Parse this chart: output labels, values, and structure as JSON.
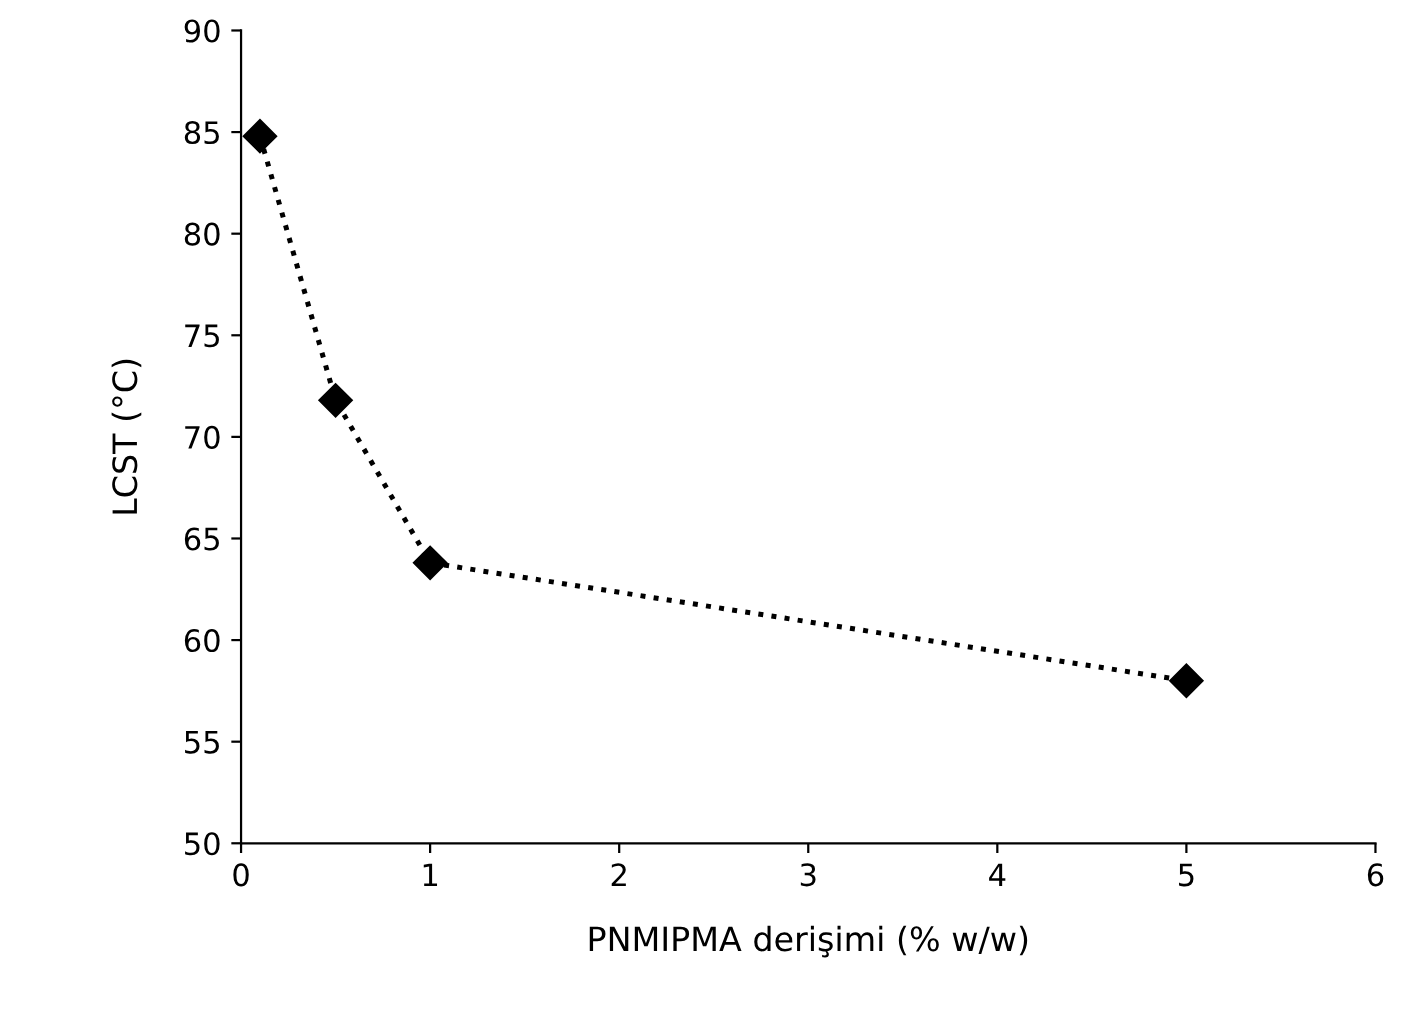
{
  "chart_data": {
    "type": "line",
    "xlabel": "PNMIPMA derişimi (% w/w)",
    "ylabel": "LCST (°C)",
    "x": [
      0.1,
      0.5,
      1,
      5
    ],
    "series": [
      {
        "color": "#000000",
        "values": [
          84.8,
          71.8,
          63.8,
          58.0
        ]
      }
    ],
    "xlim": [
      0,
      6
    ],
    "xticks": [
      0,
      1,
      2,
      3,
      4,
      5,
      6
    ],
    "ylim": [
      50,
      90
    ],
    "yticks": [
      50,
      55,
      60,
      65,
      70,
      75,
      80,
      85,
      90
    ],
    "marker": "diamond",
    "line_style": "dotted",
    "grid": false,
    "legend": false
  }
}
